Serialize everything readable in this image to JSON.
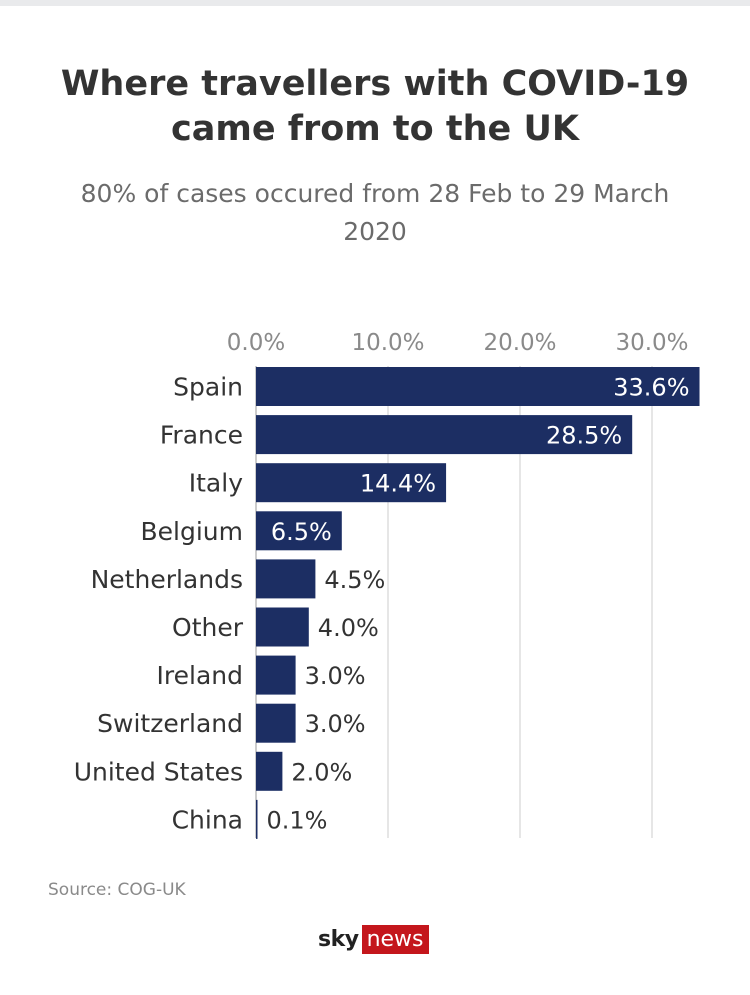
{
  "title": "Where travellers with COVID-19 came from to the UK",
  "subtitle": "80% of cases occured from 28 Feb to 29 March 2020",
  "source": "Source: COG-UK",
  "branding": {
    "sky": "sky",
    "news": "news"
  },
  "colors": {
    "bar": "#1c2e63",
    "grid": "#cccccc",
    "axis_text": "#8a8a8a",
    "category_text": "#333333",
    "logo_red": "#c4161c"
  },
  "chart_data": {
    "type": "bar",
    "orientation": "horizontal",
    "categories": [
      "Spain",
      "France",
      "Italy",
      "Belgium",
      "Netherlands",
      "Other",
      "Ireland",
      "Switzerland",
      "United States",
      "China"
    ],
    "values": [
      33.6,
      28.5,
      14.4,
      6.5,
      4.5,
      4.0,
      3.0,
      3.0,
      2.0,
      0.1
    ],
    "value_labels": [
      "33.6%",
      "28.5%",
      "14.4%",
      "6.5%",
      "4.5%",
      "4.0%",
      "3.0%",
      "3.0%",
      "2.0%",
      "0.1%"
    ],
    "x_ticks": [
      0,
      10,
      20,
      30
    ],
    "x_tick_labels": [
      "0.0%",
      "10.0%",
      "20.0%",
      "30.0%"
    ],
    "xlim": [
      0,
      34
    ],
    "x_axis_position": "top",
    "grid": true,
    "legend": false
  }
}
